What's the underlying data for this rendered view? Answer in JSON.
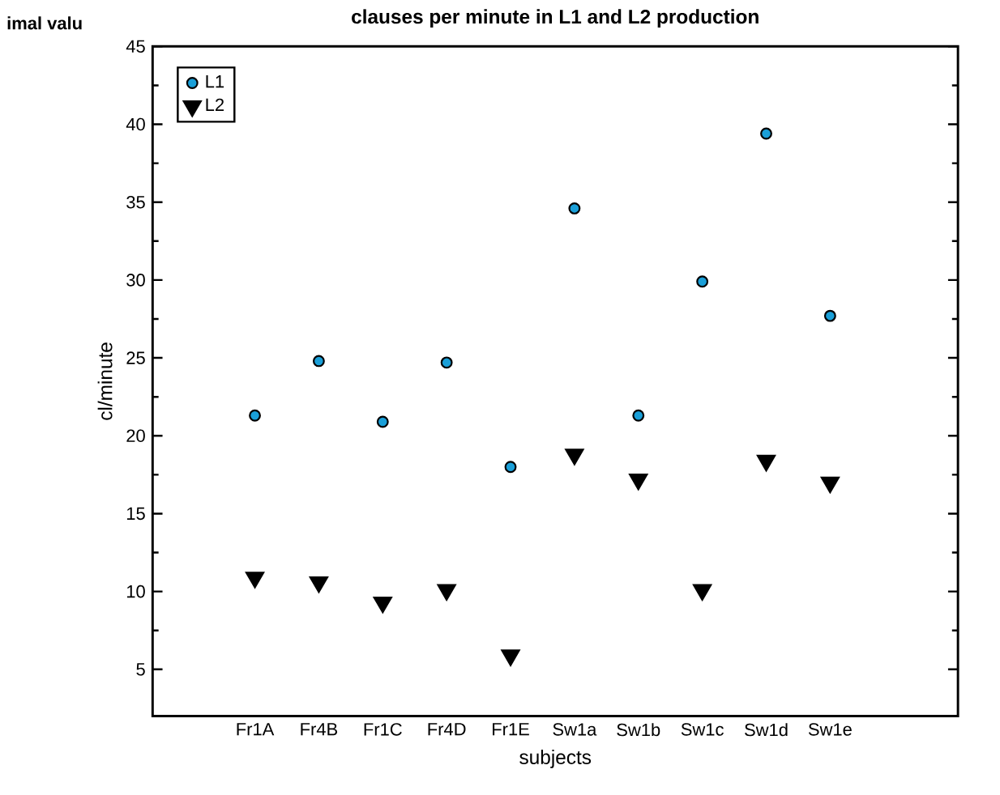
{
  "chart_data": {
    "type": "scatter",
    "title": "clauses per minute in L1 and L2 production",
    "xlabel": "subjects",
    "ylabel": "cl/minute",
    "annotations": [
      "imal valu"
    ],
    "categories": [
      "Fr1A",
      "Fr4B",
      "Fr1C",
      "Fr4D",
      "Fr1E",
      "Sw1a",
      "Sw1b",
      "Sw1c",
      "Sw1d",
      "Sw1e"
    ],
    "series": [
      {
        "name": "L1",
        "color": "#1a9fd8",
        "marker": "circle",
        "values": [
          21.3,
          24.8,
          20.9,
          24.7,
          18.0,
          34.6,
          21.3,
          29.9,
          39.4,
          27.7
        ]
      },
      {
        "name": "L2",
        "color": "#000000",
        "marker": "triangle",
        "values": [
          10.9,
          10.6,
          9.3,
          10.1,
          5.9,
          18.8,
          17.2,
          10.1,
          18.4,
          17.0
        ]
      }
    ],
    "ylim": [
      2,
      45
    ],
    "yticks": [
      5,
      10,
      15,
      20,
      25,
      30,
      35,
      40,
      45
    ],
    "legend": "top left",
    "grid": false
  }
}
